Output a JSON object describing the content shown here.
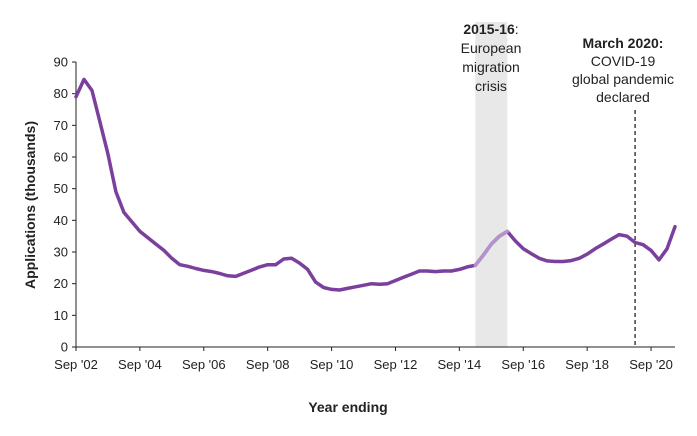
{
  "chart_data": {
    "type": "line",
    "xlabel": "Year ending",
    "ylabel": "Applications (thousands)",
    "ylim": [
      0,
      90
    ],
    "y_ticks": [
      0,
      10,
      20,
      30,
      40,
      50,
      60,
      70,
      80,
      90
    ],
    "x_ticks": [
      "Sep '02",
      "Sep '04",
      "Sep '06",
      "Sep '08",
      "Sep '10",
      "Sep '12",
      "Sep '14",
      "Sep '16",
      "Sep '18",
      "Sep '20"
    ],
    "x_range": [
      "2002-09",
      "2021-06"
    ],
    "grid": false,
    "line_color": "#7b3f9e",
    "highlight_color": "#b493cc",
    "band_color": "#e8e8e8",
    "series": [
      {
        "points": [
          [
            "2002-09",
            79
          ],
          [
            "2002-12",
            84.5
          ],
          [
            "2003-03",
            81
          ],
          [
            "2003-06",
            71
          ],
          [
            "2003-09",
            61
          ],
          [
            "2003-12",
            49
          ],
          [
            "2004-03",
            42.5
          ],
          [
            "2004-06",
            39.5
          ],
          [
            "2004-09",
            36.5
          ],
          [
            "2004-12",
            34.5
          ],
          [
            "2005-03",
            32.5
          ],
          [
            "2005-06",
            30.5
          ],
          [
            "2005-09",
            28
          ],
          [
            "2005-12",
            26
          ],
          [
            "2006-03",
            25.5
          ],
          [
            "2006-06",
            24.8
          ],
          [
            "2006-09",
            24.2
          ],
          [
            "2006-12",
            23.8
          ],
          [
            "2007-03",
            23.2
          ],
          [
            "2007-06",
            22.5
          ],
          [
            "2007-09",
            22.3
          ],
          [
            "2007-12",
            23.3
          ],
          [
            "2008-03",
            24.3
          ],
          [
            "2008-06",
            25.3
          ],
          [
            "2008-09",
            26
          ],
          [
            "2008-12",
            26
          ],
          [
            "2009-03",
            27.8
          ],
          [
            "2009-06",
            28
          ],
          [
            "2009-09",
            26.5
          ],
          [
            "2009-12",
            24.5
          ],
          [
            "2010-03",
            20.5
          ],
          [
            "2010-06",
            18.8
          ],
          [
            "2010-09",
            18.2
          ],
          [
            "2010-12",
            18
          ],
          [
            "2011-03",
            18.5
          ],
          [
            "2011-06",
            19
          ],
          [
            "2011-09",
            19.5
          ],
          [
            "2011-12",
            20
          ],
          [
            "2012-03",
            19.8
          ],
          [
            "2012-06",
            20
          ],
          [
            "2012-09",
            21
          ],
          [
            "2012-12",
            22
          ],
          [
            "2013-03",
            23
          ],
          [
            "2013-06",
            24
          ],
          [
            "2013-09",
            24
          ],
          [
            "2013-12",
            23.8
          ],
          [
            "2014-03",
            24
          ],
          [
            "2014-06",
            24
          ],
          [
            "2014-09",
            24.5
          ],
          [
            "2014-12",
            25.3
          ],
          [
            "2015-03",
            25.8
          ],
          [
            "2015-06",
            29
          ],
          [
            "2015-09",
            32.5
          ],
          [
            "2015-12",
            35
          ],
          [
            "2016-03",
            36.5
          ],
          [
            "2016-06",
            33.5
          ],
          [
            "2016-09",
            31
          ],
          [
            "2016-12",
            29.5
          ],
          [
            "2017-03",
            28
          ],
          [
            "2017-06",
            27.2
          ],
          [
            "2017-09",
            27
          ],
          [
            "2017-12",
            27
          ],
          [
            "2018-03",
            27.3
          ],
          [
            "2018-06",
            28
          ],
          [
            "2018-09",
            29.3
          ],
          [
            "2018-12",
            31
          ],
          [
            "2019-03",
            32.5
          ],
          [
            "2019-06",
            34
          ],
          [
            "2019-09",
            35.5
          ],
          [
            "2019-12",
            35
          ],
          [
            "2020-03",
            33
          ],
          [
            "2020-06",
            32.3
          ],
          [
            "2020-09",
            30.5
          ],
          [
            "2020-12",
            27.5
          ],
          [
            "2021-03",
            31
          ],
          [
            "2021-06",
            38
          ]
        ]
      }
    ],
    "highlight_segment": [
      "2015-03",
      "2016-03"
    ],
    "shaded_band": [
      "2015-03",
      "2016-03"
    ],
    "annotations": [
      {
        "bold": "2015-16",
        "tail": ":",
        "lines": [
          "European",
          "migration",
          "crisis"
        ]
      },
      {
        "bold": "March 2020:",
        "tail": "",
        "lines": [
          "COVID-19",
          "global pandemic",
          "declared"
        ],
        "x": "2020-03"
      }
    ]
  }
}
